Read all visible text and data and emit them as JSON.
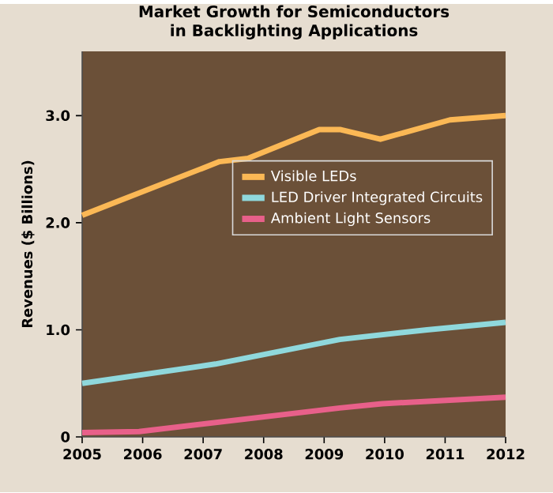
{
  "chart_data": {
    "type": "line",
    "title": "Market Growth for Semiconductors\nin Backlighting Applications",
    "ylabel": "Revenues ($ Billions)",
    "xlim": [
      2005,
      2012
    ],
    "xticks": [
      2005,
      2006,
      2007,
      2008,
      2009,
      2010,
      2011,
      2012
    ],
    "ylim": [
      0,
      3.6
    ],
    "yticks": [
      {
        "value": 0,
        "label": "0"
      },
      {
        "value": 1,
        "label": "1.0"
      },
      {
        "value": 2,
        "label": "2.0"
      },
      {
        "value": 3,
        "label": "3.0"
      }
    ],
    "legend": "right",
    "grid": false,
    "marker": "none",
    "line_style": "solid",
    "series": [
      {
        "name": "Visible LEDs",
        "color": "#fbb855",
        "x": [
          2005,
          2007.27,
          2007.74,
          2008.92,
          2009.26,
          2009.93,
          2011.08,
          2012
        ],
        "values": [
          2.07,
          2.57,
          2.6,
          2.87,
          2.87,
          2.78,
          2.96,
          3.0
        ]
      },
      {
        "name": "LED Driver Integrated Circuits",
        "color": "#8fd8dc",
        "x": [
          2005,
          2007.2,
          2009.26,
          2010.7,
          2012
        ],
        "values": [
          0.5,
          0.68,
          0.91,
          1.0,
          1.07
        ]
      },
      {
        "name": "Ambient Light Sensors",
        "color": "#e8608a",
        "x": [
          2005,
          2005.94,
          2009.26,
          2009.96,
          2012
        ],
        "values": [
          0.04,
          0.05,
          0.27,
          0.31,
          0.37
        ]
      }
    ]
  }
}
